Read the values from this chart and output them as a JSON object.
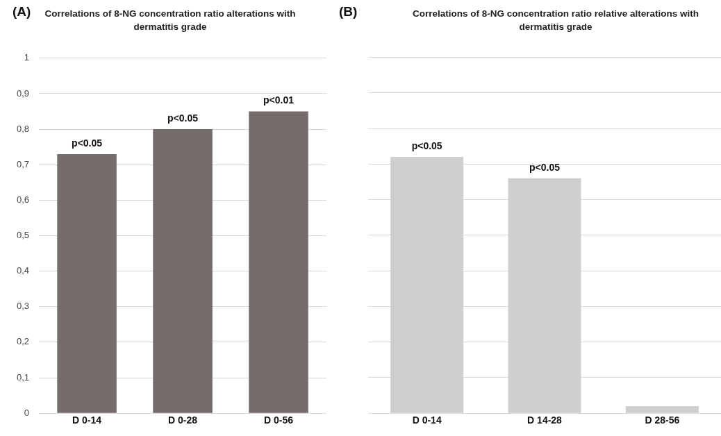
{
  "chart_data": [
    {
      "type": "bar",
      "title": "Correlations  of 8-NG concentration ratio alterations  with dermatitis grade",
      "annotations": [
        "(A)"
      ],
      "categories": [
        "D 0-14",
        "D 0-28",
        "D 0-56"
      ],
      "values": [
        0.73,
        0.8,
        0.85
      ],
      "value_labels": [
        "p<0.05",
        "p<0.05",
        "p<0.01"
      ],
      "color": "#756d6b",
      "ylim": [
        0,
        1
      ],
      "yticks": [
        0,
        {
          "value": 0.1,
          "label": "0,1"
        },
        {
          "value": 0.2,
          "label": "0,2"
        },
        {
          "value": 0.3,
          "label": "0,3"
        },
        {
          "value": 0.4,
          "label": "0,4"
        },
        {
          "value": 0.5,
          "label": "0,5"
        },
        {
          "value": 0.6,
          "label": "0,6"
        },
        {
          "value": 0.7,
          "label": "0,7"
        },
        {
          "value": 0.8,
          "label": "0,8"
        },
        {
          "value": 0.9,
          "label": "0,9"
        },
        1
      ],
      "grid": "y"
    },
    {
      "type": "bar",
      "title": "Correlations  of 8-NG concentration ratio relative alterations  with dermatitis  grade",
      "annotations": [
        "(B)"
      ],
      "categories": [
        "D 0-14",
        "D 14-28",
        "D 28-56"
      ],
      "values": [
        0.72,
        0.66,
        0.02
      ],
      "value_labels": [
        "p<0.05",
        "p<0.05",
        null
      ],
      "color": "#d0cecf",
      "ylim": [
        0,
        1
      ],
      "yticks": [
        0,
        0.1,
        0.2,
        0.3,
        0.4,
        0.5,
        0.6,
        0.7,
        0.8,
        0.9,
        1
      ],
      "grid": "y",
      "tick_labels": "x"
    }
  ]
}
